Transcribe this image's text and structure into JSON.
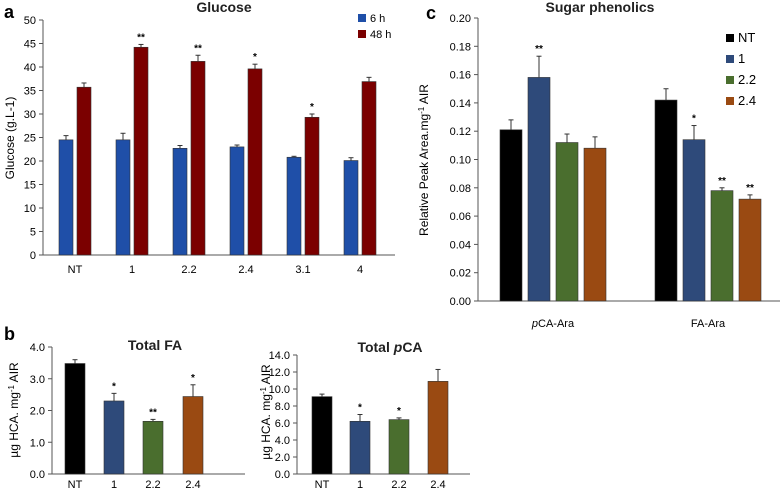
{
  "chart_data": [
    {
      "panel": "a",
      "type": "bar",
      "title": "Glucose",
      "ylabel": "Glucose (g.L-1)",
      "ylabel_parts": [
        "Glucose (g.L",
        "-1",
        ")"
      ],
      "xlabel": "",
      "ylim": [
        0,
        50
      ],
      "yticks": [
        "0",
        "5",
        "10",
        "15",
        "20",
        "25",
        "30",
        "35",
        "40",
        "45",
        "50"
      ],
      "categories": [
        "NT",
        "1",
        "2.2",
        "2.4",
        "3.1",
        "4"
      ],
      "legend_position": "top-right",
      "series": [
        {
          "name": "6 h",
          "color": "#1f4fa8",
          "values": [
            24.5,
            24.5,
            22.7,
            23.0,
            20.8,
            20.1
          ],
          "errors": [
            0.9,
            1.4,
            0.6,
            0.4,
            0.2,
            0.6
          ],
          "significance": [
            "",
            "",
            "",
            "",
            "",
            ""
          ]
        },
        {
          "name": "48 h",
          "color": "#7b0000",
          "values": [
            35.7,
            44.2,
            41.2,
            39.6,
            29.3,
            36.9
          ],
          "errors": [
            0.9,
            0.6,
            1.3,
            1.0,
            0.7,
            0.9
          ],
          "significance": [
            "",
            "**",
            "**",
            "*",
            "*",
            ""
          ]
        }
      ]
    },
    {
      "panel": "b",
      "type": "bar",
      "title": "Total FA",
      "ylabel": "µg HCA. mg-1 AIR",
      "ylabel_parts": [
        "µg HCA. mg",
        "-1",
        " AIR"
      ],
      "ylim": [
        0,
        4
      ],
      "yticks": [
        "0.0",
        "1.0",
        "2.0",
        "3.0",
        "4.0"
      ],
      "categories": [
        "NT",
        "1",
        "2.2",
        "2.4"
      ],
      "series": [
        {
          "name": "Total FA",
          "colors": [
            "#000000",
            "#2e4a7a",
            "#4a6e2e",
            "#9a4a12"
          ],
          "values": [
            3.48,
            2.3,
            1.66,
            2.44
          ],
          "errors": [
            0.12,
            0.24,
            0.06,
            0.37
          ],
          "significance": [
            "",
            "*",
            "**",
            "*"
          ]
        }
      ]
    },
    {
      "panel": "",
      "type": "bar",
      "title": "Total pCA",
      "title_parts": [
        "Total ",
        "p",
        "CA"
      ],
      "ylabel": "µg HCA. mg-1 AIR",
      "ylabel_parts": [
        "µg HCA. mg",
        "-1",
        " AIR"
      ],
      "ylim": [
        0,
        14
      ],
      "yticks": [
        "0.0",
        "2.0",
        "4.0",
        "6.0",
        "8.0",
        "10.0",
        "12.0",
        "14.0"
      ],
      "categories": [
        "NT",
        "1",
        "2.2",
        "2.4"
      ],
      "series": [
        {
          "name": "Total pCA",
          "colors": [
            "#000000",
            "#2e4a7a",
            "#4a6e2e",
            "#9a4a12"
          ],
          "values": [
            9.1,
            6.2,
            6.4,
            10.9
          ],
          "errors": [
            0.3,
            0.8,
            0.2,
            1.4
          ],
          "significance": [
            "",
            "*",
            "*",
            ""
          ]
        }
      ]
    },
    {
      "panel": "c",
      "type": "bar",
      "title": "Sugar phenolics",
      "ylabel": "Relative Peak Area.mg-1 AIR",
      "ylabel_parts": [
        "Relative Peak Area.mg",
        "-1",
        " AIR"
      ],
      "ylim": [
        0,
        0.2
      ],
      "yticks": [
        "0.00",
        "0.02",
        "0.04",
        "0.06",
        "0.08",
        "0.10",
        "0.12",
        "0.14",
        "0.16",
        "0.18",
        "0.20"
      ],
      "categories": [
        "pCA-Ara",
        "FA-Ara"
      ],
      "category_parts": [
        [
          "p",
          "CA-Ara"
        ],
        [
          "",
          "FA-Ara"
        ]
      ],
      "legend_position": "top-right",
      "series": [
        {
          "name": "NT",
          "color": "#000000",
          "values": [
            0.121,
            0.142
          ],
          "errors": [
            0.007,
            0.008
          ],
          "significance": [
            "",
            ""
          ]
        },
        {
          "name": "1",
          "color": "#2e4a7a",
          "values": [
            0.158,
            0.114
          ],
          "errors": [
            0.015,
            0.01
          ],
          "significance": [
            "**",
            "*"
          ]
        },
        {
          "name": "2.2",
          "color": "#4a6e2e",
          "values": [
            0.112,
            0.078
          ],
          "errors": [
            0.006,
            0.002
          ],
          "significance": [
            "",
            "**"
          ]
        },
        {
          "name": "2.4",
          "color": "#9a4a12",
          "values": [
            0.108,
            0.072
          ],
          "errors": [
            0.008,
            0.003
          ],
          "significance": [
            "",
            "**"
          ]
        }
      ]
    }
  ]
}
